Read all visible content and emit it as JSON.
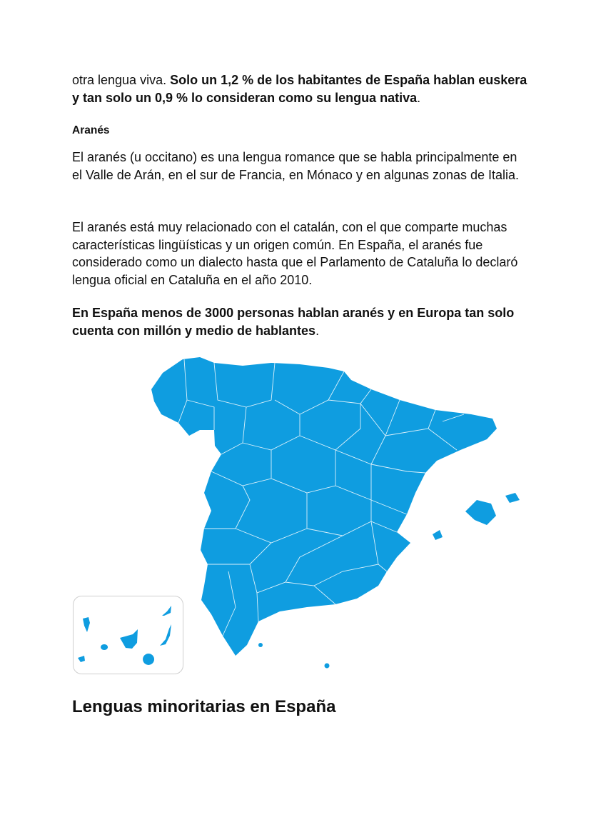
{
  "intro_paragraph": {
    "text_plain": "otra lengua viva. ",
    "text_bold": "Solo un 1,2 % de los habitantes de España hablan euskera y tan solo un 0,9 % lo consideran como su lengua nativa",
    "text_end": "."
  },
  "section_heading": "Aranés",
  "paragraph_1": "El aranés (u occitano) es una lengua romance que se habla principalmente en el Valle de Arán, en el sur de Francia, en Mónaco y en algunas zonas de Italia.",
  "paragraph_2": "El aranés está muy relacionado con el catalán, con el que comparte muchas características lingüísticas y un origen común. En España, el aranés fue considerado como un dialecto hasta que el Parlamento de Cataluña lo declaró lengua oficial en Cataluña en el año 2010.",
  "paragraph_3": {
    "text_bold": "En España menos de 3000 personas hablan aranés y en Europa tan solo cuenta con millón y medio de hablantes",
    "text_end": "."
  },
  "map": {
    "subject": "spain-provinces-map",
    "fill_color": "#0f9de0",
    "border_color": "#ffffff",
    "inset": "canary-islands"
  },
  "next_heading": "Lenguas minoritarias en España"
}
